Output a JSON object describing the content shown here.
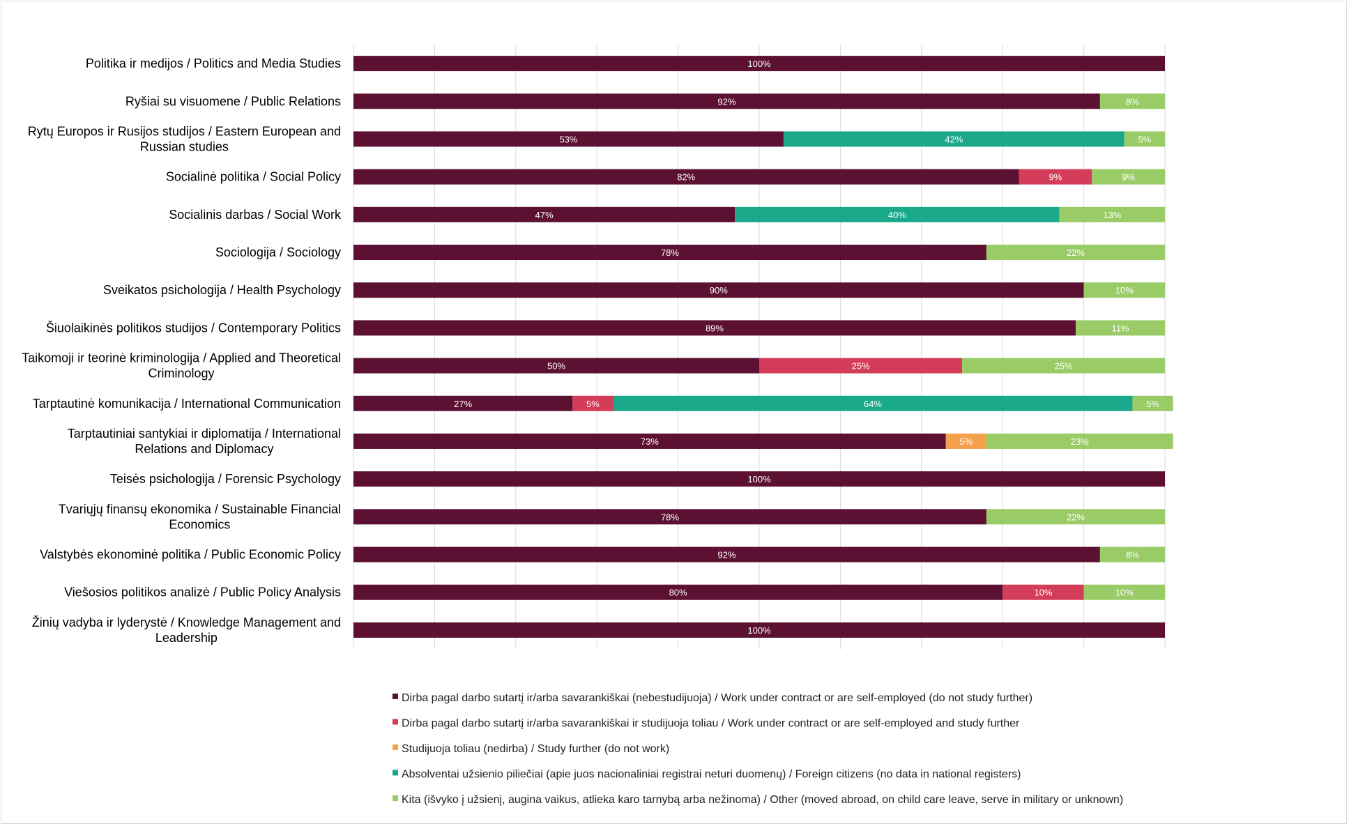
{
  "chart_data": {
    "type": "bar",
    "orientation": "horizontal",
    "stacked": "percent",
    "xlim": [
      0,
      100
    ],
    "grid": true,
    "legend_position": "bottom",
    "categories": [
      [
        "Politika ir medijos / Politics and Media Studies"
      ],
      [
        "Ryšiai su visuomene / Public Relations"
      ],
      [
        "Rytų Europos ir Rusijos studijos / Eastern European and",
        "Russian studies"
      ],
      [
        "Socialinė politika / Social Policy"
      ],
      [
        "Socialinis darbas / Social Work"
      ],
      [
        "Sociologija / Sociology"
      ],
      [
        "Sveikatos psichologija / Health Psychology"
      ],
      [
        "Šiuolaikinės politikos studijos / Contemporary Politics"
      ],
      [
        "Taikomoji ir teorinė kriminologija / Applied and Theoretical",
        "Criminology"
      ],
      [
        "Tarptautinė komunikacija / International Communication"
      ],
      [
        "Tarptautiniai santykiai ir diplomatija / International",
        "Relations and Diplomacy"
      ],
      [
        "Teisės psichologija / Forensic Psychology"
      ],
      [
        "Tvariųjų finansų ekonomika / Sustainable Financial",
        "Economics"
      ],
      [
        "Valstybės ekonominė politika / Public Economic Policy"
      ],
      [
        "Viešosios politikos analizė / Public Policy Analysis"
      ],
      [
        "Žinių vadyba ir lyderystė / Knowledge Management and",
        "Leadership"
      ]
    ],
    "series": [
      {
        "name": "Dirba pagal darbo sutartį ir/arba savarankiškai (nebestudijuoja) / Work under contract or are self-employed (do not study further)",
        "color": "#5c1133",
        "values": [
          100,
          92,
          53,
          82,
          47,
          78,
          90,
          89,
          50,
          27,
          73,
          100,
          78,
          92,
          80,
          100
        ]
      },
      {
        "name": "Dirba pagal darbo sutartį ir/arba savarankiškai  ir studijuoja toliau / Work under contract or are self-employed and study further",
        "color": "#d43d5a",
        "values": [
          0,
          0,
          0,
          9,
          0,
          0,
          0,
          0,
          25,
          5,
          0,
          0,
          0,
          0,
          10,
          0
        ]
      },
      {
        "name": "Studijuoja toliau (nedirba) / Study further (do not work)",
        "color": "#f4a04d",
        "values": [
          0,
          0,
          0,
          0,
          0,
          0,
          0,
          0,
          0,
          0,
          5,
          0,
          0,
          0,
          0,
          0
        ]
      },
      {
        "name": "Absolventai užsienio piliečiai (apie juos nacionaliniai registrai neturi duomenų) / Foreign citizens (no data in national registers)",
        "color": "#1aa98b",
        "values": [
          0,
          0,
          42,
          0,
          40,
          0,
          0,
          0,
          0,
          64,
          0,
          0,
          0,
          0,
          0,
          0
        ]
      },
      {
        "name": "Kita (išvyko į užsienį, augina vaikus, atlieka karo tarnybą arba nežinoma) / Other (moved abroad, on child care leave, serve in military or unknown)",
        "color": "#99cc66",
        "values": [
          0,
          8,
          5,
          9,
          13,
          22,
          10,
          11,
          25,
          5,
          23,
          0,
          22,
          8,
          10,
          0
        ]
      }
    ],
    "data_label_suffix": "%"
  }
}
